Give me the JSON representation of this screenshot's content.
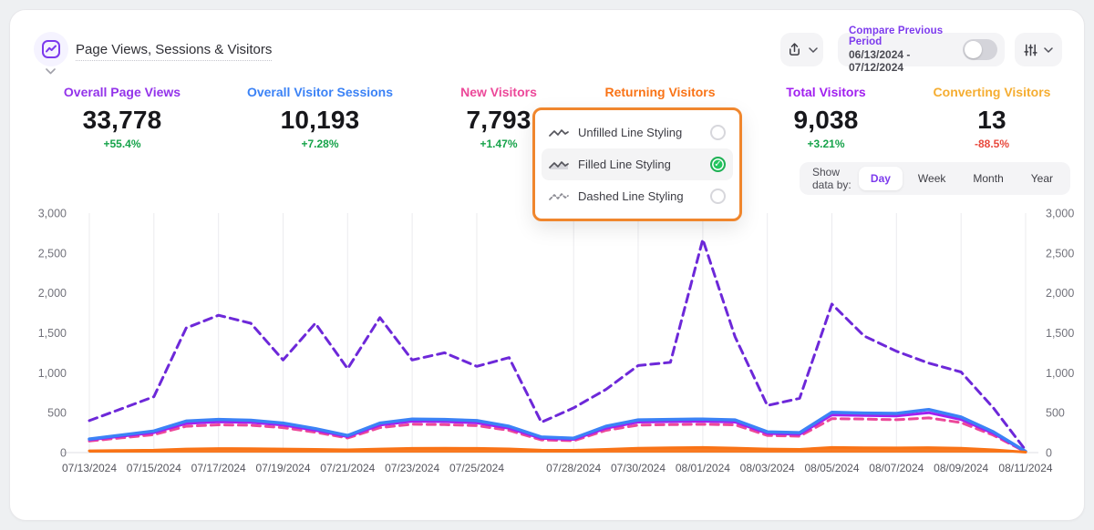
{
  "header": {
    "title": "Page Views, Sessions & Visitors",
    "compare": {
      "label": "Compare Previous Period",
      "date_range": "06/13/2024 - 07/12/2024",
      "toggle_on": false
    }
  },
  "colors": {
    "positive": "#16a34a",
    "negative": "#e8493d",
    "grid": "#ebebee",
    "baseline": "#dfdfe4"
  },
  "metrics": [
    {
      "label": "Overall Page Views",
      "value": "33,778",
      "change": "+55.4%",
      "direction": "up",
      "color": "#9333ea"
    },
    {
      "label": "Overall Visitor Sessions",
      "value": "10,193",
      "change": "+7.28%",
      "direction": "up",
      "color": "#3b82f6"
    },
    {
      "label": "New Visitors",
      "value": "7,793",
      "change": "+1.47%",
      "direction": "up",
      "color": "#ec4899"
    },
    {
      "label": "Returning Visitors",
      "value": "",
      "change": "",
      "direction": "up",
      "color": "#f97316"
    },
    {
      "label": "Total Visitors",
      "value": "9,038",
      "change": "+3.21%",
      "direction": "up",
      "color": "#a120f0"
    },
    {
      "label": "Converting Visitors",
      "value": "13",
      "change": "-88.5%",
      "direction": "down",
      "color": "#f5ad31"
    }
  ],
  "dropdown": {
    "highlight_color": "#f0862d",
    "items": [
      {
        "label": "Unfilled Line Styling",
        "icon": "unfilled-line-icon",
        "selected": false
      },
      {
        "label": "Filled Line Styling",
        "icon": "filled-line-icon",
        "selected": true
      },
      {
        "label": "Dashed Line Styling",
        "icon": "dashed-line-icon",
        "selected": false
      }
    ]
  },
  "granularity": {
    "label": "Show data by:",
    "options": [
      "Day",
      "Week",
      "Month",
      "Year"
    ],
    "selected": "Day"
  },
  "chart_data": {
    "type": "line",
    "title": "Page Views, Sessions & Visitors",
    "xlabel": "",
    "ylabel": "",
    "ylim": [
      0,
      3000
    ],
    "y_ticks": [
      0,
      500,
      1000,
      1500,
      2000,
      2500,
      3000
    ],
    "y_axis_sides": "both",
    "grid": "vertical",
    "legend": "none",
    "x": [
      "07/13/2024",
      "07/14/2024",
      "07/15/2024",
      "07/16/2024",
      "07/17/2024",
      "07/18/2024",
      "07/19/2024",
      "07/20/2024",
      "07/21/2024",
      "07/22/2024",
      "07/23/2024",
      "07/24/2024",
      "07/25/2024",
      "07/26/2024",
      "07/27/2024",
      "07/28/2024",
      "07/29/2024",
      "07/30/2024",
      "07/31/2024",
      "08/01/2024",
      "08/02/2024",
      "08/03/2024",
      "08/04/2024",
      "08/05/2024",
      "08/06/2024",
      "08/07/2024",
      "08/08/2024",
      "08/09/2024",
      "08/10/2024",
      "08/11/2024"
    ],
    "x_tick_indices": [
      0,
      2,
      4,
      6,
      8,
      10,
      12,
      15,
      17,
      19,
      21,
      23,
      25,
      27,
      29
    ],
    "x_tick_labels": [
      "07/13/2024",
      "07/15/2024",
      "07/17/2024",
      "07/19/2024",
      "07/21/2024",
      "07/23/2024",
      "07/25/2024",
      "07/28/2024",
      "07/30/2024",
      "08/01/2024",
      "08/03/2024",
      "08/05/2024",
      "08/07/2024",
      "08/09/2024",
      "08/11/2024"
    ],
    "series": [
      {
        "name": "Overall Page Views",
        "color": "#6d28d9",
        "style": "dashed",
        "width": 3,
        "values": [
          400,
          550,
          700,
          1560,
          1720,
          1620,
          1160,
          1620,
          1050,
          1690,
          1160,
          1250,
          1080,
          1190,
          380,
          560,
          790,
          1090,
          1130,
          2670,
          1450,
          590,
          680,
          1860,
          1460,
          1270,
          1120,
          1010,
          560,
          30
        ]
      },
      {
        "name": "New Visitors",
        "color": "#ec4899",
        "style": "dashed",
        "width": 3,
        "values": [
          145,
          185,
          225,
          330,
          348,
          342,
          312,
          255,
          182,
          312,
          355,
          350,
          338,
          278,
          158,
          148,
          278,
          345,
          350,
          355,
          348,
          215,
          205,
          425,
          420,
          412,
          435,
          375,
          218,
          8
        ]
      },
      {
        "name": "Total Visitors",
        "color": "#a120f0",
        "style": "solid",
        "width": 3,
        "values": [
          160,
          205,
          250,
          365,
          385,
          378,
          345,
          280,
          200,
          345,
          392,
          388,
          372,
          305,
          178,
          165,
          305,
          382,
          388,
          392,
          382,
          240,
          228,
          472,
          465,
          458,
          500,
          415,
          240,
          10
        ]
      },
      {
        "name": "Overall Visitor Sessions",
        "color": "#3b82f6",
        "style": "solid",
        "width": 3.5,
        "values": [
          170,
          220,
          270,
          395,
          415,
          405,
          370,
          300,
          215,
          370,
          420,
          415,
          400,
          330,
          195,
          180,
          330,
          410,
          415,
          420,
          410,
          260,
          250,
          505,
          495,
          490,
          540,
          445,
          260,
          15
        ]
      },
      {
        "name": "Returning Visitors",
        "color": "#f97316",
        "style": "filled",
        "width": 3,
        "values": [
          22,
          26,
          30,
          45,
          50,
          48,
          45,
          40,
          34,
          44,
          52,
          55,
          52,
          46,
          30,
          28,
          40,
          55,
          60,
          64,
          56,
          45,
          40,
          64,
          60,
          58,
          62,
          54,
          34,
          6
        ]
      }
    ]
  }
}
